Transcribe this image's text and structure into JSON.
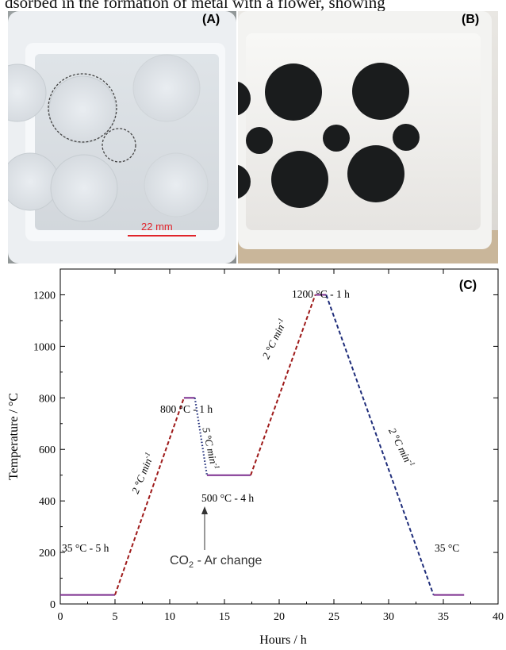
{
  "caption_fragment": "dsorbed in the formation of metal with a flower, showing",
  "panels": {
    "A": {
      "label": "(A)",
      "scale_bar": "22 mm"
    },
    "B": {
      "label": "(B)"
    },
    "C": {
      "label": "(C)"
    }
  },
  "colors": {
    "purple": "#7B2D8E",
    "red": "#9E1A1A",
    "blue": "#1F2D7A",
    "scale_red": "#E0242A"
  },
  "chart_data": {
    "type": "line",
    "xlabel": "Hours / h",
    "ylabel": "Temperature / °C",
    "xlim": [
      0,
      40
    ],
    "ylim": [
      0,
      1300
    ],
    "xticks": [
      0,
      5,
      10,
      15,
      20,
      25,
      30,
      35,
      40
    ],
    "yticks": [
      0,
      200,
      400,
      600,
      800,
      1000,
      1200
    ],
    "legend": "none",
    "series": [
      {
        "style": "solid",
        "color": "#7B2D8E",
        "x": [
          0,
          5
        ],
        "y": [
          35,
          35
        ]
      },
      {
        "style": "dashed",
        "color": "#9E1A1A",
        "x": [
          5,
          11.3
        ],
        "y": [
          35,
          800
        ]
      },
      {
        "style": "solid",
        "color": "#7B2D8E",
        "x": [
          11.3,
          12.3
        ],
        "y": [
          800,
          800
        ]
      },
      {
        "style": "dotted",
        "color": "#1F2D7A",
        "x": [
          12.3,
          13.4
        ],
        "y": [
          800,
          500
        ]
      },
      {
        "style": "solid",
        "color": "#7B2D8E",
        "x": [
          13.4,
          17.4
        ],
        "y": [
          500,
          500
        ]
      },
      {
        "style": "dashed",
        "color": "#9E1A1A",
        "x": [
          17.4,
          23.3
        ],
        "y": [
          500,
          1200
        ]
      },
      {
        "style": "solid",
        "color": "#7B2D8E",
        "x": [
          23.3,
          24.3
        ],
        "y": [
          1200,
          1200
        ]
      },
      {
        "style": "dashed",
        "color": "#1F2D7A",
        "x": [
          24.3,
          34.1
        ],
        "y": [
          1200,
          35
        ]
      },
      {
        "style": "solid",
        "color": "#7B2D8E",
        "x": [
          34.1,
          36.9
        ],
        "y": [
          35,
          35
        ]
      }
    ],
    "annotations": {
      "hold35": {
        "base": "35 °C - 5 h"
      },
      "hold800": {
        "base": "800 °C - 1 h"
      },
      "hold500": {
        "base": "500 °C - 4 h"
      },
      "hold1200": {
        "base": "1200 °C - 1 h"
      },
      "final35": {
        "base": "35 °C"
      },
      "ramp1": {
        "base": "2 °C min",
        "sup": "-1"
      },
      "ramp2": {
        "base": "5 °C min",
        "sup": "-1"
      },
      "ramp3": {
        "base": "2 °C min",
        "sup": "-1"
      },
      "ramp4": {
        "base": "2 °C min",
        "sup": "-1"
      },
      "gas": {
        "a": "CO",
        "sub": "2",
        "b": " - Ar change"
      }
    }
  }
}
